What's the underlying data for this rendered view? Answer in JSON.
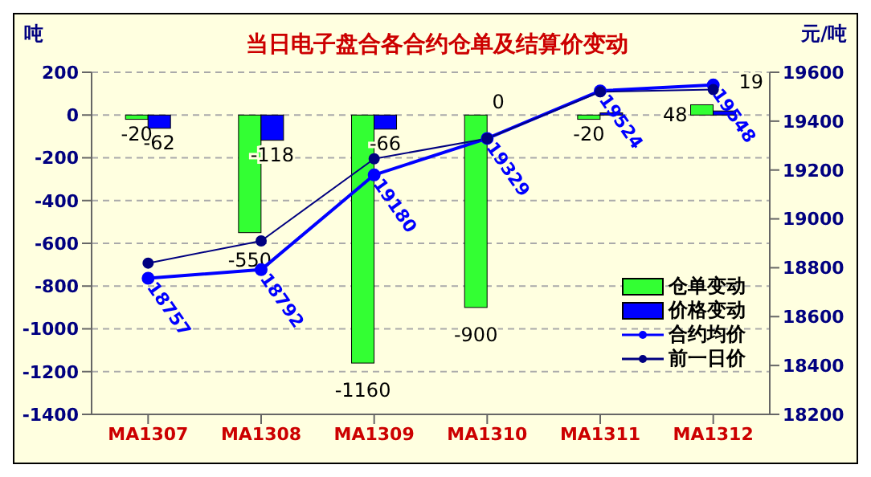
{
  "chart_data": {
    "type": "bar",
    "title": "当日电子盘合各合约仓单及结算价变动",
    "ylabel": "吨",
    "y2label": "元/吨",
    "categories": [
      "MA1307",
      "MA1308",
      "MA1309",
      "MA1310",
      "MA1311",
      "MA1312"
    ],
    "series": [
      {
        "name": "仓单变动",
        "color": "#33ff33",
        "values": [
          -20,
          -550,
          -1160,
          -900,
          -20,
          48
        ],
        "value_labels": [
          "-20",
          "-550",
          "-1160",
          "-900",
          "-20",
          "48"
        ]
      },
      {
        "name": "价格变动",
        "color": "#0000ff",
        "values": [
          -62,
          -118,
          -66,
          0,
          10,
          19
        ],
        "value_labels": [
          "-62",
          "-118",
          "-66",
          "0",
          null,
          "19"
        ]
      },
      {
        "name": "合约均价",
        "type": "line",
        "axis": "y2",
        "color": "#0000ff",
        "values": [
          18757,
          18792,
          19180,
          19329,
          19524,
          19548
        ],
        "value_labels": [
          "18757",
          "18792",
          "19180",
          "19329",
          "19524",
          "19548"
        ]
      },
      {
        "name": "前一日价",
        "type": "line",
        "axis": "y2",
        "color": "#000080",
        "values": [
          18819,
          18910,
          19246,
          19329,
          19520,
          19529
        ]
      }
    ],
    "ylim": [
      -1400,
      200
    ],
    "yticks": [
      -1400,
      -1200,
      -1000,
      -800,
      -600,
      -400,
      -200,
      0,
      200
    ],
    "y2lim": [
      18200,
      19600
    ],
    "y2ticks": [
      18200,
      18400,
      18600,
      18800,
      19000,
      19200,
      19400,
      19600
    ],
    "grid": "y",
    "legend": "right",
    "marker": "circle"
  }
}
